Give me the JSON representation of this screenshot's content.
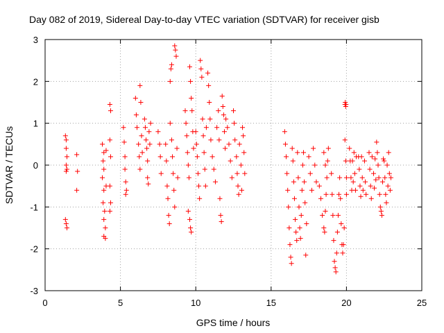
{
  "chart_data": {
    "type": "scatter",
    "title": "Day 082 of 2019, Sidereal Day-to-day VTEC variation (SDTVAR) for receiver gisb",
    "xlabel": "GPS time / hours",
    "ylabel": "SDTVAR / TECUs",
    "xlim": [
      0,
      25
    ],
    "ylim": [
      -3,
      3
    ],
    "xticks": [
      0,
      5,
      10,
      15,
      20,
      25
    ],
    "yticks": [
      -3,
      -2,
      -1,
      0,
      1,
      2,
      3
    ],
    "grid": true,
    "marker": "+",
    "color": "#ff0000",
    "series": [
      {
        "name": "SDTVAR",
        "points": [
          [
            1.35,
            0.7
          ],
          [
            1.4,
            0.6
          ],
          [
            1.4,
            0.4
          ],
          [
            1.45,
            0.2
          ],
          [
            1.4,
            0.0
          ],
          [
            1.45,
            -0.1
          ],
          [
            1.4,
            -0.15
          ],
          [
            1.35,
            -1.3
          ],
          [
            1.4,
            -1.4
          ],
          [
            1.45,
            -1.5
          ],
          [
            2.1,
            0.25
          ],
          [
            2.15,
            -0.15
          ],
          [
            2.1,
            -0.6
          ],
          [
            3.8,
            0.5
          ],
          [
            3.9,
            0.3
          ],
          [
            3.85,
            0.1
          ],
          [
            3.9,
            -0.1
          ],
          [
            3.8,
            -0.3
          ],
          [
            3.9,
            -0.6
          ],
          [
            3.85,
            -0.9
          ],
          [
            3.95,
            -1.1
          ],
          [
            3.9,
            -1.3
          ],
          [
            4.0,
            -1.5
          ],
          [
            3.9,
            -1.7
          ],
          [
            4.0,
            -1.75
          ],
          [
            4.05,
            0.35
          ],
          [
            4.05,
            -0.5
          ],
          [
            4.3,
            1.45
          ],
          [
            4.35,
            1.3
          ],
          [
            4.3,
            0.6
          ],
          [
            4.35,
            0.2
          ],
          [
            4.3,
            -0.5
          ],
          [
            4.35,
            -0.9
          ],
          [
            4.3,
            -1.1
          ],
          [
            5.2,
            0.9
          ],
          [
            5.25,
            0.55
          ],
          [
            5.3,
            0.2
          ],
          [
            5.3,
            -0.1
          ],
          [
            5.35,
            -0.4
          ],
          [
            5.4,
            -0.6
          ],
          [
            5.35,
            -0.7
          ],
          [
            6.0,
            1.6
          ],
          [
            6.05,
            1.2
          ],
          [
            6.1,
            0.9
          ],
          [
            6.2,
            0.5
          ],
          [
            6.25,
            0.2
          ],
          [
            6.3,
            -0.1
          ],
          [
            6.3,
            1.9
          ],
          [
            6.35,
            1.5
          ],
          [
            6.4,
            0.7
          ],
          [
            6.45,
            0.3
          ],
          [
            6.6,
            1.1
          ],
          [
            6.65,
            0.9
          ],
          [
            6.7,
            0.6
          ],
          [
            6.75,
            0.4
          ],
          [
            6.8,
            0.1
          ],
          [
            6.8,
            -0.3
          ],
          [
            6.85,
            -0.45
          ],
          [
            6.9,
            0.8
          ],
          [
            6.95,
            0.5
          ],
          [
            7.0,
            1.0
          ],
          [
            7.5,
            0.8
          ],
          [
            7.6,
            0.5
          ],
          [
            7.65,
            0.2
          ],
          [
            7.7,
            -0.2
          ],
          [
            8.0,
            0.5
          ],
          [
            8.05,
            0.1
          ],
          [
            8.1,
            -0.5
          ],
          [
            8.15,
            -0.8
          ],
          [
            8.2,
            -1.2
          ],
          [
            8.25,
            -1.4
          ],
          [
            8.3,
            1.0
          ],
          [
            8.3,
            2.0
          ],
          [
            8.35,
            2.3
          ],
          [
            8.4,
            2.4
          ],
          [
            8.4,
            0.6
          ],
          [
            8.45,
            0.2
          ],
          [
            8.5,
            -0.2
          ],
          [
            8.55,
            -0.6
          ],
          [
            8.6,
            -1.0
          ],
          [
            8.6,
            2.85
          ],
          [
            8.65,
            2.75
          ],
          [
            8.7,
            2.6
          ],
          [
            8.75,
            0.4
          ],
          [
            8.8,
            -0.3
          ],
          [
            9.3,
            1.3
          ],
          [
            9.35,
            1.0
          ],
          [
            9.4,
            0.7
          ],
          [
            9.45,
            0.3
          ],
          [
            9.5,
            0.0
          ],
          [
            9.55,
            -0.3
          ],
          [
            9.6,
            2.35
          ],
          [
            9.65,
            2.0
          ],
          [
            9.7,
            1.6
          ],
          [
            9.75,
            1.3
          ],
          [
            9.8,
            0.8
          ],
          [
            9.85,
            0.4
          ],
          [
            9.6,
            -1.3
          ],
          [
            9.65,
            -1.5
          ],
          [
            9.7,
            -1.6
          ],
          [
            9.5,
            -1.1
          ],
          [
            10.0,
            0.8
          ],
          [
            10.05,
            0.5
          ],
          [
            10.1,
            0.2
          ],
          [
            10.15,
            -0.2
          ],
          [
            10.2,
            -0.5
          ],
          [
            10.25,
            -0.8
          ],
          [
            10.3,
            2.5
          ],
          [
            10.35,
            2.3
          ],
          [
            10.4,
            2.1
          ],
          [
            10.45,
            1.1
          ],
          [
            10.5,
            0.7
          ],
          [
            10.55,
            0.3
          ],
          [
            10.6,
            -0.1
          ],
          [
            10.65,
            -0.5
          ],
          [
            10.7,
            0.9
          ],
          [
            10.8,
            2.2
          ],
          [
            10.85,
            1.9
          ],
          [
            10.9,
            1.5
          ],
          [
            10.95,
            1.1
          ],
          [
            11.0,
            0.6
          ],
          [
            11.1,
            0.2
          ],
          [
            11.2,
            -0.1
          ],
          [
            11.3,
            -0.4
          ],
          [
            11.4,
            0.9
          ],
          [
            11.5,
            1.3
          ],
          [
            11.55,
            0.6
          ],
          [
            11.6,
            -0.8
          ],
          [
            11.65,
            -1.2
          ],
          [
            11.7,
            -1.35
          ],
          [
            11.75,
            1.65
          ],
          [
            11.8,
            1.4
          ],
          [
            11.85,
            1.2
          ],
          [
            11.9,
            0.8
          ],
          [
            11.95,
            0.4
          ],
          [
            12.0,
            1.1
          ],
          [
            12.1,
            0.9
          ],
          [
            12.2,
            0.5
          ],
          [
            12.3,
            0.1
          ],
          [
            12.4,
            -0.3
          ],
          [
            12.5,
            1.3
          ],
          [
            12.55,
            1.0
          ],
          [
            12.6,
            0.6
          ],
          [
            12.7,
            0.2
          ],
          [
            12.75,
            -0.2
          ],
          [
            12.8,
            -0.5
          ],
          [
            12.85,
            -0.7
          ],
          [
            12.9,
            0.5
          ],
          [
            13.0,
            0.0
          ],
          [
            13.05,
            -0.6
          ],
          [
            13.1,
            0.9
          ],
          [
            13.15,
            0.7
          ],
          [
            13.2,
            0.3
          ],
          [
            13.25,
            -0.2
          ],
          [
            15.9,
            0.8
          ],
          [
            15.95,
            0.5
          ],
          [
            16.0,
            0.2
          ],
          [
            16.05,
            -0.2
          ],
          [
            16.1,
            -0.6
          ],
          [
            16.15,
            -1.0
          ],
          [
            16.2,
            -1.5
          ],
          [
            16.25,
            -1.9
          ],
          [
            16.3,
            -2.2
          ],
          [
            16.35,
            -2.35
          ],
          [
            16.4,
            0.4
          ],
          [
            16.45,
            0.1
          ],
          [
            16.5,
            -0.4
          ],
          [
            16.55,
            -0.8
          ],
          [
            16.6,
            -1.3
          ],
          [
            16.65,
            -1.6
          ],
          [
            16.7,
            -1.8
          ],
          [
            16.75,
            0.3
          ],
          [
            16.8,
            -0.3
          ],
          [
            16.85,
            -1.0
          ],
          [
            16.9,
            -1.5
          ],
          [
            16.95,
            -1.75
          ],
          [
            17.0,
            -1.2
          ],
          [
            17.05,
            -0.6
          ],
          [
            17.1,
            0.0
          ],
          [
            17.15,
            0.3
          ],
          [
            17.2,
            -0.4
          ],
          [
            17.25,
            -0.9
          ],
          [
            17.3,
            -2.15
          ],
          [
            17.35,
            -1.4
          ],
          [
            17.5,
            0.2
          ],
          [
            17.6,
            -0.2
          ],
          [
            17.7,
            -0.6
          ],
          [
            17.8,
            0.4
          ],
          [
            17.9,
            0.0
          ],
          [
            18.0,
            -0.4
          ],
          [
            18.2,
            -0.5
          ],
          [
            18.3,
            -0.8
          ],
          [
            18.4,
            -1.2
          ],
          [
            18.5,
            -1.5
          ],
          [
            18.55,
            -1.6
          ],
          [
            18.6,
            -1.1
          ],
          [
            18.65,
            -0.7
          ],
          [
            18.7,
            -0.3
          ],
          [
            18.75,
            0.1
          ],
          [
            18.8,
            0.4
          ],
          [
            18.5,
            0.3
          ],
          [
            18.6,
            0.0
          ],
          [
            19.0,
            -0.2
          ],
          [
            19.05,
            -0.7
          ],
          [
            19.1,
            -1.2
          ],
          [
            19.15,
            -1.8
          ],
          [
            19.2,
            -2.3
          ],
          [
            19.25,
            -2.45
          ],
          [
            19.3,
            -2.55
          ],
          [
            19.35,
            -2.1
          ],
          [
            19.4,
            -1.6
          ],
          [
            19.45,
            -1.2
          ],
          [
            19.5,
            -0.7
          ],
          [
            19.55,
            -0.3
          ],
          [
            19.6,
            -0.8
          ],
          [
            19.65,
            -1.4
          ],
          [
            19.7,
            -1.9
          ],
          [
            19.75,
            -2.1
          ],
          [
            19.8,
            -1.9
          ],
          [
            19.85,
            -1.5
          ],
          [
            19.9,
            1.45
          ],
          [
            19.92,
            1.5
          ],
          [
            19.95,
            1.4
          ],
          [
            19.97,
            1.45
          ],
          [
            19.9,
            0.6
          ],
          [
            19.95,
            0.1
          ],
          [
            20.0,
            -0.3
          ],
          [
            20.0,
            -0.7
          ],
          [
            20.2,
            0.4
          ],
          [
            20.25,
            0.1
          ],
          [
            20.3,
            -0.3
          ],
          [
            20.35,
            -0.6
          ],
          [
            20.4,
            0.1
          ],
          [
            20.45,
            -0.4
          ],
          [
            20.5,
            0.3
          ],
          [
            20.55,
            -0.2
          ],
          [
            20.6,
            -0.6
          ],
          [
            20.65,
            0.2
          ],
          [
            20.8,
            0.2
          ],
          [
            20.85,
            -0.1
          ],
          [
            20.9,
            -0.5
          ],
          [
            20.95,
            -0.75
          ],
          [
            21.0,
            0.2
          ],
          [
            21.05,
            -0.3
          ],
          [
            21.1,
            -0.6
          ],
          [
            21.2,
            0.1
          ],
          [
            21.25,
            -0.4
          ],
          [
            21.3,
            -0.7
          ],
          [
            21.5,
            0.3
          ],
          [
            21.55,
            -0.1
          ],
          [
            21.6,
            -0.5
          ],
          [
            21.65,
            -0.8
          ],
          [
            21.7,
            0.2
          ],
          [
            21.8,
            -0.2
          ],
          [
            21.85,
            -0.55
          ],
          [
            21.9,
            0.15
          ],
          [
            21.95,
            -0.35
          ],
          [
            22.0,
            0.55
          ],
          [
            22.05,
            0.3
          ],
          [
            22.1,
            0.0
          ],
          [
            22.15,
            -0.3
          ],
          [
            22.2,
            -0.7
          ],
          [
            22.25,
            -1.0
          ],
          [
            22.3,
            -1.1
          ],
          [
            22.35,
            -1.2
          ],
          [
            22.4,
            -0.4
          ],
          [
            22.45,
            0.15
          ],
          [
            22.5,
            0.1
          ],
          [
            22.55,
            -0.3
          ],
          [
            22.6,
            -0.7
          ],
          [
            22.65,
            -0.9
          ],
          [
            22.7,
            0.0
          ],
          [
            22.75,
            -0.5
          ],
          [
            22.8,
            0.3
          ],
          [
            22.85,
            -0.2
          ],
          [
            22.9,
            -0.6
          ],
          [
            22.95,
            -0.3
          ]
        ]
      }
    ]
  }
}
